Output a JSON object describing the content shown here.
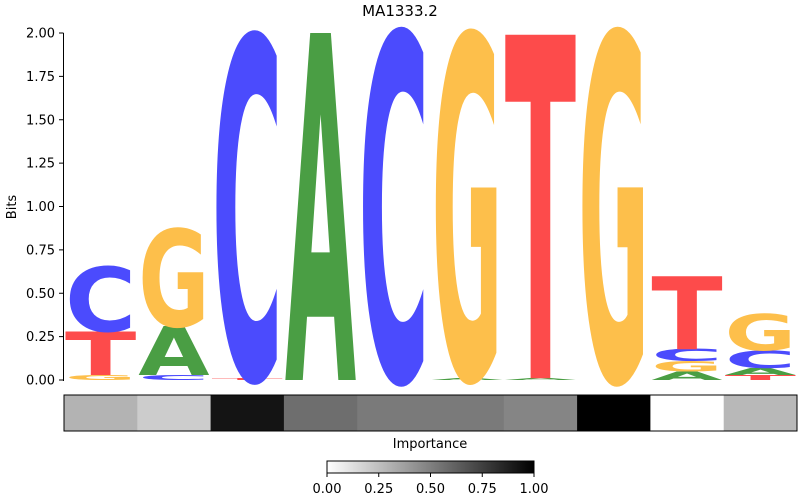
{
  "chart_data": {
    "type": "sequence-logo",
    "title": "MA1333.2",
    "ylabel": "Bits",
    "ylim": [
      0,
      2
    ],
    "yticks": [
      "0.00",
      "0.25",
      "0.50",
      "0.75",
      "1.00",
      "1.25",
      "1.50",
      "1.75",
      "2.00"
    ],
    "colors": {
      "A": "#4a9e44",
      "C": "#4b4bfd",
      "G": "#fdbf4b",
      "T": "#fd4b4b"
    },
    "positions": [
      {
        "letters": [
          {
            "base": "G",
            "bits": 0.03
          },
          {
            "base": "T",
            "bits": 0.25
          },
          {
            "base": "C",
            "bits": 0.37
          }
        ]
      },
      {
        "letters": [
          {
            "base": "C",
            "bits": 0.03
          },
          {
            "base": "A",
            "bits": 0.28
          },
          {
            "base": "G",
            "bits": 0.56
          }
        ]
      },
      {
        "letters": [
          {
            "base": "T",
            "bits": 0.01
          },
          {
            "base": "C",
            "bits": 1.97
          }
        ]
      },
      {
        "letters": [
          {
            "base": "A",
            "bits": 2.0
          }
        ]
      },
      {
        "letters": [
          {
            "base": "C",
            "bits": 2.0
          }
        ]
      },
      {
        "letters": [
          {
            "base": "A",
            "bits": 0.01
          },
          {
            "base": "G",
            "bits": 1.98
          }
        ]
      },
      {
        "letters": [
          {
            "base": "A",
            "bits": 0.01
          },
          {
            "base": "T",
            "bits": 1.98
          }
        ]
      },
      {
        "letters": [
          {
            "base": "G",
            "bits": 2.0
          }
        ]
      },
      {
        "letters": [
          {
            "base": "A",
            "bits": 0.05
          },
          {
            "base": "G",
            "bits": 0.06
          },
          {
            "base": "C",
            "bits": 0.07
          },
          {
            "base": "T",
            "bits": 0.42
          }
        ]
      },
      {
        "letters": [
          {
            "base": "T",
            "bits": 0.03
          },
          {
            "base": "A",
            "bits": 0.04
          },
          {
            "base": "C",
            "bits": 0.1
          },
          {
            "base": "G",
            "bits": 0.21
          }
        ]
      }
    ],
    "importance": {
      "xlabel": "Importance",
      "values": [
        0.3,
        0.2,
        0.92,
        0.57,
        0.52,
        0.52,
        0.48,
        1.0,
        0.0,
        0.28
      ],
      "colorbar_ticks": [
        "0.00",
        "0.25",
        "0.50",
        "0.75",
        "1.00"
      ],
      "colorbar_range": [
        0,
        1
      ]
    }
  }
}
